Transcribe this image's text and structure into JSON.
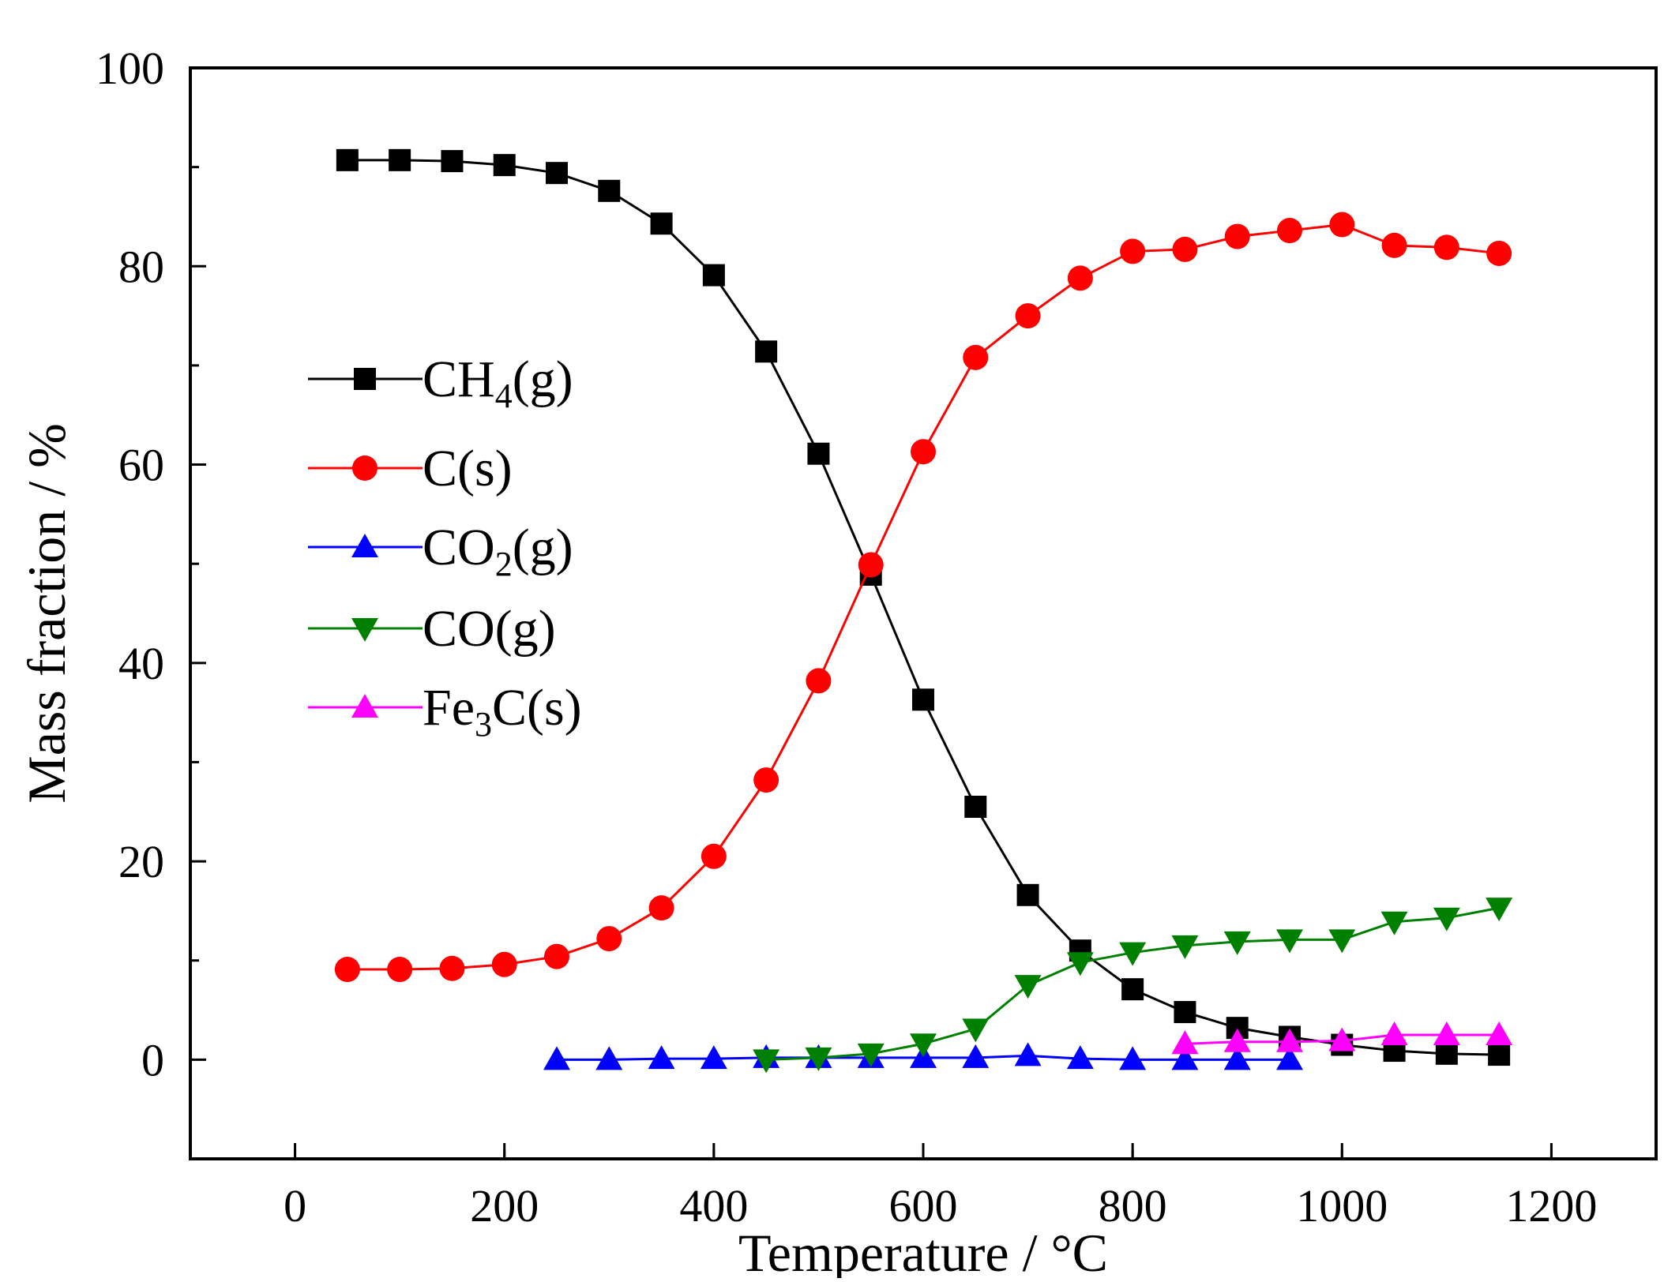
{
  "chart_data": {
    "type": "line",
    "xlabel": "Temperature / °C",
    "ylabel": "Mass fraction / %",
    "xlim": [
      -100,
      1300
    ],
    "ylim": [
      -10,
      100
    ],
    "x_ticks": [
      0,
      200,
      400,
      600,
      800,
      1000,
      1200
    ],
    "y_ticks": [
      0,
      20,
      40,
      60,
      80,
      100
    ],
    "x_tick_labels": [
      "0",
      "200",
      "400",
      "600",
      "800",
      "1000",
      "1200"
    ],
    "y_tick_labels": [
      "0",
      "20",
      "40",
      "60",
      "80",
      "100"
    ],
    "grid": false,
    "legend_position": "center-left",
    "series": [
      {
        "name": "CH4(g)",
        "label_main": "CH",
        "label_sub": "4",
        "label_tail": "(g)",
        "color": "#000000",
        "marker": "square",
        "x": [
          50,
          100,
          150,
          200,
          250,
          300,
          350,
          400,
          450,
          500,
          550,
          600,
          650,
          700,
          750,
          800,
          850,
          900,
          950,
          1000,
          1050,
          1100,
          1150
        ],
        "y": [
          90.7,
          90.7,
          90.6,
          90.2,
          89.4,
          87.6,
          84.3,
          79.1,
          71.4,
          61.1,
          48.9,
          36.3,
          25.5,
          16.6,
          11.0,
          7.1,
          4.8,
          3.2,
          2.3,
          1.5,
          0.9,
          0.6,
          0.5
        ]
      },
      {
        "name": "C(s)",
        "label_main": "C(s)",
        "label_sub": "",
        "label_tail": "",
        "color": "#ff0000",
        "marker": "circle",
        "x": [
          50,
          100,
          150,
          200,
          250,
          300,
          350,
          400,
          450,
          500,
          550,
          600,
          650,
          700,
          750,
          800,
          850,
          900,
          950,
          1000,
          1050,
          1100,
          1150
        ],
        "y": [
          9.1,
          9.1,
          9.2,
          9.6,
          10.4,
          12.2,
          15.3,
          20.5,
          28.2,
          38.2,
          49.9,
          61.3,
          70.8,
          75.0,
          78.8,
          81.5,
          81.7,
          83.0,
          83.6,
          84.2,
          82.1,
          81.9,
          81.3
        ]
      },
      {
        "name": "CO2(g)",
        "label_main": "CO",
        "label_sub": "2",
        "label_tail": "(g)",
        "color": "#0000ff",
        "marker": "triangle-up",
        "x": [
          250,
          300,
          350,
          400,
          450,
          500,
          550,
          600,
          650,
          700,
          750,
          800,
          850,
          900,
          950
        ],
        "y": [
          0.0,
          0.0,
          0.1,
          0.1,
          0.2,
          0.2,
          0.2,
          0.2,
          0.2,
          0.4,
          0.1,
          0.0,
          0.0,
          0.0,
          0.0
        ]
      },
      {
        "name": "CO(g)",
        "label_main": "CO(g)",
        "label_sub": "",
        "label_tail": "",
        "color": "#008000",
        "marker": "triangle-down",
        "x": [
          450,
          500,
          550,
          600,
          650,
          700,
          750,
          800,
          850,
          900,
          950,
          1000,
          1050,
          1100,
          1150
        ],
        "y": [
          0.0,
          0.2,
          0.6,
          1.6,
          3.1,
          7.5,
          9.8,
          10.8,
          11.5,
          11.9,
          12.1,
          12.1,
          13.9,
          14.3,
          15.3
        ]
      },
      {
        "name": "Fe3C(s)",
        "label_main": "Fe",
        "label_sub": "3",
        "label_tail": "C(s)",
        "color": "#ff00ff",
        "marker": "triangle-up",
        "x": [
          850,
          900,
          950,
          1000,
          1050,
          1100,
          1150
        ],
        "y": [
          1.6,
          1.8,
          1.8,
          1.9,
          2.5,
          2.5,
          2.5
        ]
      }
    ]
  }
}
